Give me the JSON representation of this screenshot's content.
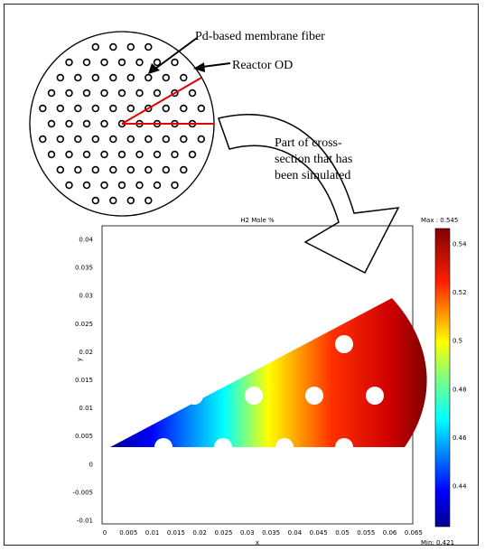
{
  "annotations": {
    "fiber_label": "Pd-based membrane fiber",
    "reactor_label": "Reactor OD",
    "simulated_label_lines": [
      "Part of cross-",
      "section that has",
      "been simulated"
    ]
  },
  "plot": {
    "title": "H2 Mole %",
    "xlabel": "x",
    "ylabel": "y",
    "x_ticks": [
      "0",
      "0.005",
      "0.01",
      "0.015",
      "0.02",
      "0.025",
      "0.03",
      "0.035",
      "0.04",
      "0.045",
      "0.05",
      "0.055",
      "0.06",
      "0.065"
    ],
    "y_ticks": [
      "0.04",
      "0.035",
      "0.03",
      "0.025",
      "0.02",
      "0.015",
      "0.01",
      "0.005",
      "0",
      "-0.005",
      "-0.01"
    ]
  },
  "colorbar": {
    "max_label": "Max : 0.545",
    "min_label": "Min: 0.421",
    "ticks": [
      "0.54",
      "0.52",
      "0.5",
      "0.48",
      "0.46",
      "0.44"
    ]
  },
  "colors": {
    "circle_stroke": "#000000",
    "sector_line": "#e00000",
    "colormap": [
      "#00008f",
      "#0000ff",
      "#00ffff",
      "#ffff00",
      "#ff0000",
      "#800000"
    ]
  }
}
